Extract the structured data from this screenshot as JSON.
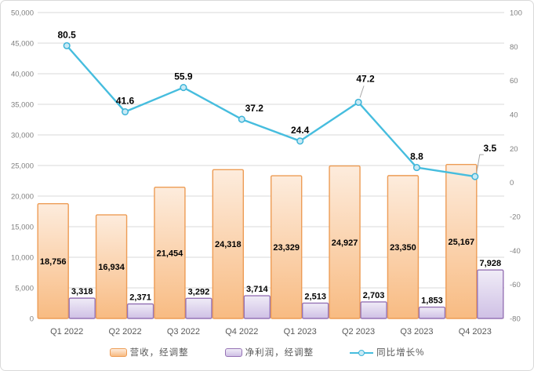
{
  "chart": {
    "background": "#FFFFFF",
    "border_color": "#D9D9D9",
    "title": ""
  },
  "chart_data": {
    "type": "combo",
    "categories": [
      "Q1 2022",
      "Q2 2022",
      "Q3 2022",
      "Q4 2022",
      "Q1 2023",
      "Q2 2023",
      "Q3 2023",
      "Q4 2023"
    ],
    "series": [
      {
        "name": "营收，经调整",
        "type": "bar",
        "axis": "left",
        "values": [
          18756,
          16934,
          21454,
          24318,
          23329,
          24927,
          23350,
          25167
        ],
        "labels": [
          "18,756",
          "16,934",
          "21,454",
          "24,318",
          "23,329",
          "24,927",
          "23,350",
          "25,167"
        ],
        "label_position": "inside-center",
        "fill_top": "#FDECDD",
        "fill_bottom": "#F8BB82",
        "border": "#ED9C55"
      },
      {
        "name": "净利润，经调整",
        "type": "bar",
        "axis": "left",
        "values": [
          3318,
          2371,
          3292,
          3714,
          2513,
          2703,
          1853,
          7928
        ],
        "labels": [
          "3,318",
          "2,371",
          "3,292",
          "3,714",
          "2,513",
          "2,703",
          "1,853",
          "7,928"
        ],
        "label_position": "outside-end",
        "fill_top": "#F0ECF7",
        "fill_bottom": "#CFC0E5",
        "border": "#9673B5"
      },
      {
        "name": "同比增长%",
        "type": "line",
        "axis": "right",
        "values": [
          80.5,
          41.6,
          55.9,
          37.2,
          24.4,
          47.2,
          8.8,
          3.5
        ],
        "labels": [
          "80.5",
          "41.6",
          "55.9",
          "37.2",
          "24.4",
          "47.2",
          "8.8",
          "3.5"
        ],
        "label_position": "above",
        "color": "#46BDDE",
        "marker_fill": "#C9EAF5",
        "marker_stroke": "#3EB4D8",
        "label_adjust": [
          {
            "index": 3,
            "dx": 16,
            "dy": 0
          },
          {
            "index": 5,
            "dx": 9,
            "dy": -16,
            "leader": true
          },
          {
            "index": 7,
            "dx": 19,
            "dy": -22,
            "leader": true
          }
        ]
      }
    ],
    "left_axis": {
      "min": 0,
      "max": 50000,
      "step": 5000,
      "tick_labels": [
        "0",
        "5,000",
        "10,000",
        "15,000",
        "20,000",
        "25,000",
        "30,000",
        "35,000",
        "40,000",
        "45,000",
        "50,000"
      ]
    },
    "right_axis": {
      "min": -80,
      "max": 100,
      "step": 20,
      "tick_labels": [
        "-80",
        "-60",
        "-40",
        "-20",
        "0",
        "20",
        "40",
        "60",
        "80",
        "100"
      ]
    },
    "grid": true,
    "legend_position": "bottom",
    "colors": {
      "gridline": "#D9D9D9",
      "axis_text": "#7F7F7F",
      "category_text": "#595959",
      "data_label": "#000000",
      "leader": "#A6A6A6"
    }
  },
  "legend": {
    "items": [
      {
        "label": "营收，经调整"
      },
      {
        "label": "净利润，经调整"
      },
      {
        "label": "同比增长%"
      }
    ]
  }
}
